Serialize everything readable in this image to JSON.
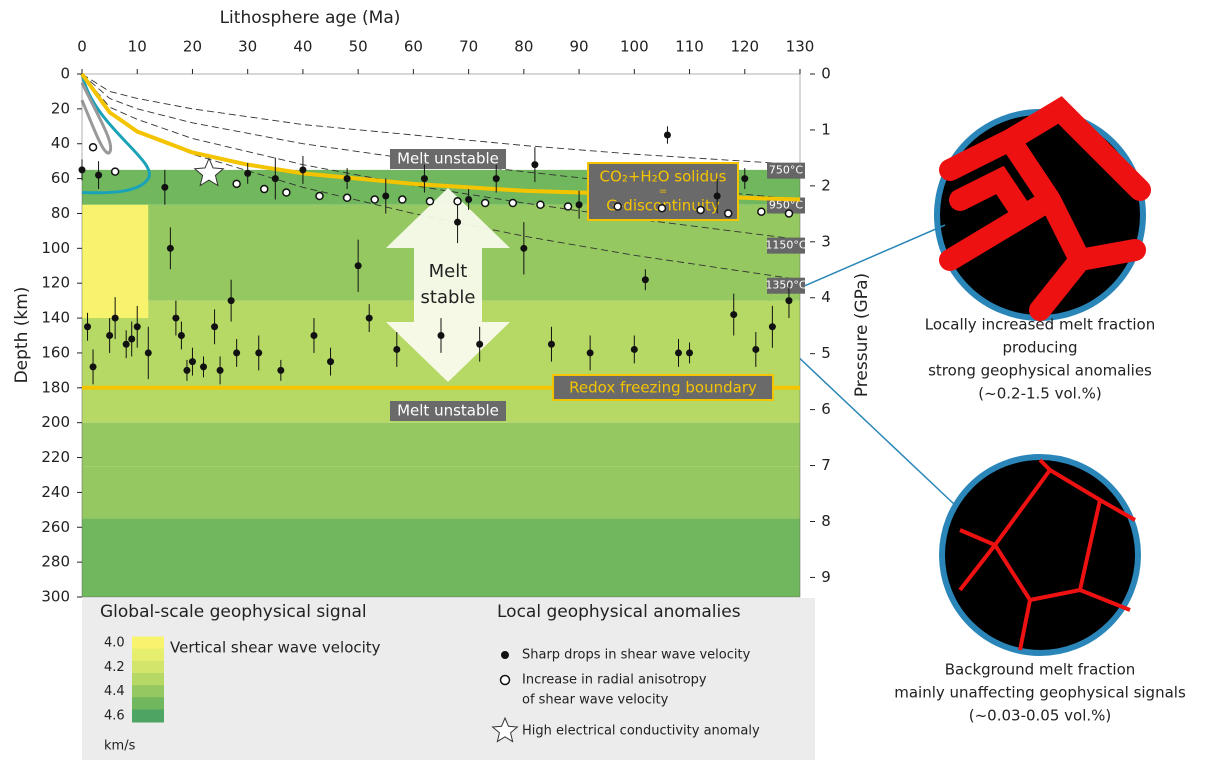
{
  "chart_data": {
    "type": "scatter",
    "x_label": "Lithosphere age (Ma)",
    "y_label": "Depth (km)",
    "y2_label": "Pressure (GPa)",
    "xlim": [
      0,
      130
    ],
    "xticks": [
      0,
      10,
      20,
      30,
      40,
      50,
      60,
      70,
      80,
      90,
      100,
      110,
      120,
      130
    ],
    "ylim": [
      300,
      0
    ],
    "yticks": [
      0,
      20,
      40,
      60,
      80,
      100,
      120,
      140,
      160,
      180,
      200,
      220,
      240,
      260,
      280,
      300
    ],
    "y2lim": [
      9.35,
      0
    ],
    "y2ticks": [
      0,
      1,
      2,
      3,
      4,
      5,
      6,
      7,
      8,
      9
    ],
    "colorscale": {
      "title": "Global-scale geophysical signal",
      "label": "Vertical shear wave velocity",
      "unit": "km/s",
      "stops": [
        4.0,
        4.1,
        4.2,
        4.3,
        4.4,
        4.5,
        4.6
      ],
      "colors": [
        "#f8f36c",
        "#e6ee6e",
        "#d3e66b",
        "#b6d865",
        "#95c860",
        "#70b75d",
        "#4ea563"
      ],
      "ticks": [
        {
          "value": 4,
          "label": "4.0"
        },
        4.2,
        4.4,
        4.6
      ]
    },
    "layers": [
      {
        "xlim": [
          0,
          130
        ],
        "depth": [
          55,
          75
        ],
        "value": 4.5
      },
      {
        "xlim": [
          0,
          130
        ],
        "depth": [
          75,
          130
        ],
        "value": 4.4
      },
      {
        "xlim": [
          0,
          130
        ],
        "depth": [
          130,
          180
        ],
        "value": 4.3
      },
      {
        "xlim": [
          0,
          12
        ],
        "depth": [
          75,
          140
        ],
        "value": 4.05
      },
      {
        "xlim": [
          0,
          130
        ],
        "depth": [
          180,
          200
        ],
        "value": 4.35
      },
      {
        "xlim": [
          0,
          130
        ],
        "depth": [
          200,
          225
        ],
        "value": 4.4
      },
      {
        "xlim": [
          0,
          130
        ],
        "depth": [
          225,
          255
        ],
        "value": 4.45
      },
      {
        "xlim": [
          0,
          130
        ],
        "depth": [
          255,
          300
        ],
        "value": 4.55
      }
    ],
    "legend_title": "Local geophysical anomalies",
    "series": [
      {
        "name": "Sharp drops in shear wave velocity",
        "marker": "dot",
        "color": "#111111",
        "x": [
          0,
          1,
          2,
          3,
          5,
          6,
          8,
          9,
          10,
          12,
          15,
          16,
          17,
          18,
          19,
          20,
          22,
          24,
          25,
          27,
          28,
          30,
          32,
          35,
          36,
          40,
          42,
          45,
          48,
          50,
          52,
          55,
          57,
          62,
          65,
          68,
          70,
          72,
          75,
          80,
          82,
          85,
          90,
          92,
          100,
          102,
          106,
          108,
          110,
          115,
          118,
          120,
          122,
          125,
          128
        ],
        "values": [
          55,
          145,
          168,
          58,
          150,
          140,
          155,
          152,
          145,
          160,
          65,
          100,
          140,
          150,
          170,
          165,
          168,
          145,
          170,
          130,
          160,
          57,
          160,
          60,
          170,
          55,
          150,
          165,
          60,
          110,
          140,
          70,
          158,
          60,
          150,
          85,
          72,
          155,
          60,
          100,
          52,
          155,
          75,
          160,
          158,
          118,
          35,
          160,
          160,
          70,
          138,
          60,
          158,
          145,
          130
        ],
        "errors": [
          6,
          8,
          10,
          8,
          10,
          12,
          8,
          10,
          12,
          15,
          10,
          12,
          10,
          8,
          6,
          8,
          6,
          10,
          8,
          12,
          8,
          6,
          10,
          12,
          6,
          8,
          10,
          8,
          6,
          15,
          8,
          10,
          10,
          8,
          10,
          12,
          6,
          10,
          8,
          15,
          10,
          10,
          8,
          10,
          8,
          6,
          5,
          8,
          6,
          10,
          12,
          6,
          10,
          12,
          10
        ]
      },
      {
        "name": "Increase in radial anisotropy of shear wave velocity",
        "marker": "open",
        "color": "#111111",
        "x": [
          2,
          6,
          28,
          33,
          37,
          43,
          48,
          53,
          58,
          63,
          68,
          73,
          78,
          83,
          88,
          97,
          105,
          112,
          117,
          123,
          128
        ],
        "values": [
          42,
          56,
          63,
          66,
          68,
          70,
          71,
          72,
          72,
          73,
          73,
          74,
          74,
          75,
          76,
          76,
          77,
          78,
          80,
          79,
          80
        ]
      },
      {
        "name": "High electrical conductivity anomaly",
        "marker": "star",
        "color": "#ffffff",
        "x": [
          23
        ],
        "values": [
          57
        ]
      }
    ],
    "isotherms": [
      {
        "name": "750°C",
        "x": [
          0,
          5,
          10,
          20,
          40,
          60,
          80,
          100,
          130
        ],
        "values": [
          0,
          10,
          14,
          20,
          29,
          35,
          41,
          46,
          52
        ]
      },
      {
        "name": "950°C",
        "x": [
          0,
          5,
          10,
          20,
          40,
          60,
          80,
          100,
          130
        ],
        "values": [
          0,
          14,
          20,
          28,
          40,
          49,
          56,
          63,
          72
        ]
      },
      {
        "name": "1150°C",
        "x": [
          0,
          5,
          10,
          20,
          40,
          60,
          80,
          100,
          130
        ],
        "values": [
          0,
          19,
          26,
          37,
          52,
          64,
          74,
          83,
          95
        ]
      },
      {
        "name": "1350°C",
        "x": [
          0,
          5,
          10,
          20,
          40,
          60,
          80,
          100,
          130
        ],
        "values": [
          0,
          23,
          33,
          46,
          65,
          80,
          93,
          104,
          118
        ]
      }
    ],
    "solidus": {
      "color": "#f5c400",
      "x": [
        0,
        5,
        10,
        20,
        30,
        40,
        60,
        80,
        100,
        130
      ],
      "values": [
        0,
        22,
        33,
        45,
        52,
        57,
        63,
        67,
        69,
        72
      ]
    },
    "redox": {
      "color": "#f5c400",
      "x": [
        0,
        130
      ],
      "values": [
        180,
        180
      ]
    },
    "annotations": {
      "melt_unstable_top": "Melt unstable",
      "melt_unstable_bottom": "Melt unstable",
      "melt_stable": [
        "Melt",
        "stable"
      ],
      "solidus": [
        "CO₂+H₂O solidus",
        "=",
        "G-discontinuity"
      ],
      "redox": "Redox freezing boundary"
    }
  },
  "insets": [
    {
      "caption": [
        "Locally increased melt fraction",
        "producing",
        "strong geophysical anomalies",
        "(~0.2-1.5 vol.%)"
      ]
    },
    {
      "caption": [
        "Background melt fraction",
        "mainly unaffecting geophysical signals",
        "(~0.03-0.05 vol.%)"
      ]
    }
  ]
}
